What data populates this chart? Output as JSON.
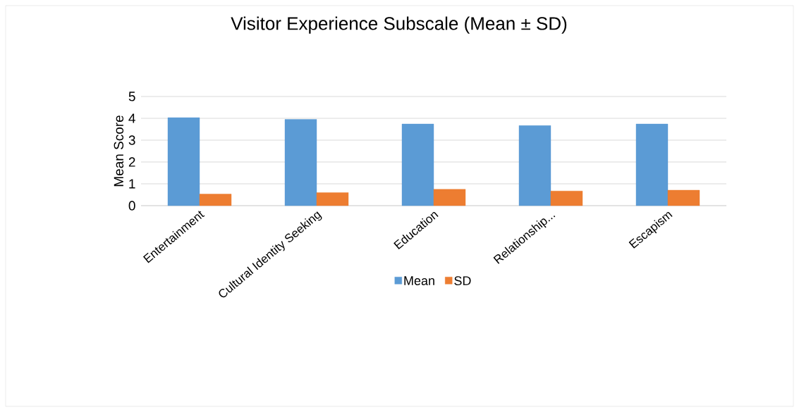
{
  "chart_data": {
    "type": "bar",
    "title": "Visitor Experience Subscale (Mean ± SD)",
    "ylabel": "Mean Score",
    "categories": [
      "Entertainment",
      "Cultural Identity Seeking",
      "Education",
      "Relationship...",
      "Escapism"
    ],
    "series": [
      {
        "name": "Mean",
        "color": "#5b9bd5",
        "values": [
          4.03,
          3.95,
          3.74,
          3.67,
          3.74
        ]
      },
      {
        "name": "SD",
        "color": "#ed7d31",
        "values": [
          0.53,
          0.6,
          0.75,
          0.67,
          0.71
        ]
      }
    ],
    "ylim": [
      0,
      5
    ],
    "yticks": [
      0,
      1,
      2,
      3,
      4,
      5
    ],
    "grid": "y",
    "legend": "bottom"
  }
}
